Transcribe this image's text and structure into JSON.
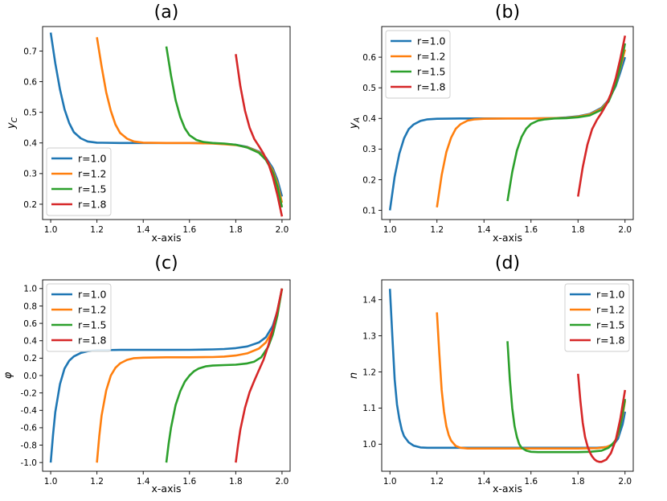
{
  "chart_data": [
    {
      "type": "line",
      "title": "(a)",
      "xlabel": "x-axis",
      "ylabel": "y_C",
      "ylabel_main": "y",
      "ylabel_sub": "C",
      "xlim": [
        0.965,
        2.035
      ],
      "ylim": [
        0.15,
        0.78
      ],
      "xticks": [
        1.0,
        1.2,
        1.4,
        1.6,
        1.8,
        2.0
      ],
      "xtick_labels": [
        "1.0",
        "1.2",
        "1.4",
        "1.6",
        "1.8",
        "2.0"
      ],
      "yticks": [
        0.2,
        0.3,
        0.4,
        0.5,
        0.6,
        0.7
      ],
      "ytick_labels": [
        "0.2",
        "0.3",
        "0.4",
        "0.5",
        "0.6",
        "0.7"
      ],
      "legend_position": "lower-left",
      "series": [
        {
          "name": "r=1.0",
          "color": "#1f77b4",
          "x": [
            1.0,
            1.02,
            1.04,
            1.06,
            1.08,
            1.1,
            1.13,
            1.16,
            1.2,
            1.3,
            1.4,
            1.5,
            1.6,
            1.7,
            1.75,
            1.8,
            1.85,
            1.9,
            1.93,
            1.96,
            1.98,
            2.0
          ],
          "y": [
            0.76,
            0.66,
            0.575,
            0.51,
            0.465,
            0.435,
            0.415,
            0.405,
            0.401,
            0.4,
            0.4,
            0.4,
            0.4,
            0.399,
            0.397,
            0.394,
            0.387,
            0.372,
            0.352,
            0.318,
            0.28,
            0.225
          ]
        },
        {
          "name": "r=1.2",
          "color": "#ff7f0e",
          "x": [
            1.2,
            1.22,
            1.24,
            1.26,
            1.28,
            1.3,
            1.33,
            1.36,
            1.4,
            1.5,
            1.6,
            1.7,
            1.75,
            1.8,
            1.85,
            1.9,
            1.93,
            1.96,
            1.98,
            2.0
          ],
          "y": [
            0.745,
            0.65,
            0.565,
            0.505,
            0.46,
            0.433,
            0.414,
            0.405,
            0.401,
            0.4,
            0.4,
            0.398,
            0.396,
            0.393,
            0.386,
            0.37,
            0.348,
            0.31,
            0.268,
            0.205
          ]
        },
        {
          "name": "r=1.5",
          "color": "#2ca02c",
          "x": [
            1.5,
            1.52,
            1.54,
            1.56,
            1.58,
            1.6,
            1.63,
            1.66,
            1.7,
            1.75,
            1.8,
            1.85,
            1.9,
            1.93,
            1.96,
            1.98,
            2.0
          ],
          "y": [
            0.715,
            0.62,
            0.54,
            0.485,
            0.448,
            0.425,
            0.41,
            0.403,
            0.4,
            0.398,
            0.394,
            0.385,
            0.368,
            0.345,
            0.305,
            0.258,
            0.19
          ]
        },
        {
          "name": "r=1.8",
          "color": "#d62728",
          "x": [
            1.8,
            1.82,
            1.84,
            1.86,
            1.88,
            1.9,
            1.92,
            1.94,
            1.96,
            1.98,
            2.0
          ],
          "y": [
            0.69,
            0.585,
            0.505,
            0.45,
            0.413,
            0.39,
            0.365,
            0.335,
            0.29,
            0.23,
            0.16
          ]
        }
      ]
    },
    {
      "type": "line",
      "title": "(b)",
      "xlabel": "x-axis",
      "ylabel": "y_A",
      "ylabel_main": "y",
      "ylabel_sub": "A",
      "xlim": [
        0.965,
        2.035
      ],
      "ylim": [
        0.07,
        0.7
      ],
      "xticks": [
        1.0,
        1.2,
        1.4,
        1.6,
        1.8,
        2.0
      ],
      "xtick_labels": [
        "1.0",
        "1.2",
        "1.4",
        "1.6",
        "1.8",
        "2.0"
      ],
      "yticks": [
        0.1,
        0.2,
        0.3,
        0.4,
        0.5,
        0.6
      ],
      "ytick_labels": [
        "0.1",
        "0.2",
        "0.3",
        "0.4",
        "0.5",
        "0.6"
      ],
      "legend_position": "upper-left",
      "series": [
        {
          "name": "r=1.0",
          "color": "#1f77b4",
          "x": [
            1.0,
            1.02,
            1.04,
            1.06,
            1.08,
            1.1,
            1.13,
            1.16,
            1.2,
            1.3,
            1.4,
            1.5,
            1.6,
            1.7,
            1.75,
            1.8,
            1.85,
            1.9,
            1.93,
            1.96,
            1.98,
            2.0
          ],
          "y": [
            0.1,
            0.21,
            0.285,
            0.335,
            0.365,
            0.38,
            0.392,
            0.397,
            0.399,
            0.4,
            0.4,
            0.4,
            0.4,
            0.401,
            0.403,
            0.407,
            0.415,
            0.435,
            0.46,
            0.505,
            0.55,
            0.6
          ]
        },
        {
          "name": "r=1.2",
          "color": "#ff7f0e",
          "x": [
            1.2,
            1.22,
            1.24,
            1.26,
            1.28,
            1.3,
            1.33,
            1.36,
            1.4,
            1.5,
            1.6,
            1.7,
            1.75,
            1.8,
            1.85,
            1.9,
            1.93,
            1.96,
            1.98,
            2.0
          ],
          "y": [
            0.11,
            0.215,
            0.29,
            0.337,
            0.366,
            0.381,
            0.393,
            0.397,
            0.399,
            0.4,
            0.4,
            0.401,
            0.402,
            0.406,
            0.413,
            0.432,
            0.458,
            0.51,
            0.565,
            0.625
          ]
        },
        {
          "name": "r=1.5",
          "color": "#2ca02c",
          "x": [
            1.5,
            1.52,
            1.54,
            1.56,
            1.58,
            1.6,
            1.63,
            1.66,
            1.7,
            1.75,
            1.8,
            1.85,
            1.9,
            1.93,
            1.96,
            1.98,
            2.0
          ],
          "y": [
            0.13,
            0.225,
            0.295,
            0.34,
            0.367,
            0.382,
            0.393,
            0.397,
            0.4,
            0.401,
            0.404,
            0.41,
            0.428,
            0.455,
            0.51,
            0.57,
            0.645
          ]
        },
        {
          "name": "r=1.8",
          "color": "#d62728",
          "x": [
            1.8,
            1.82,
            1.84,
            1.86,
            1.88,
            1.9,
            1.92,
            1.94,
            1.96,
            1.98,
            2.0
          ],
          "y": [
            0.145,
            0.24,
            0.315,
            0.365,
            0.395,
            0.418,
            0.445,
            0.48,
            0.53,
            0.595,
            0.67
          ]
        }
      ]
    },
    {
      "type": "line",
      "title": "(c)",
      "xlabel": "x-axis",
      "ylabel": "φ",
      "xlim": [
        0.965,
        2.035
      ],
      "ylim": [
        -1.1,
        1.1
      ],
      "xticks": [
        1.0,
        1.2,
        1.4,
        1.6,
        1.8,
        2.0
      ],
      "xtick_labels": [
        "1.0",
        "1.2",
        "1.4",
        "1.6",
        "1.8",
        "2.0"
      ],
      "yticks": [
        -1.0,
        -0.8,
        -0.6,
        -0.4,
        -0.2,
        0.0,
        0.2,
        0.4,
        0.6,
        0.8,
        1.0
      ],
      "ytick_labels": [
        "-1.0",
        "-0.8",
        "-0.6",
        "-0.4",
        "-0.2",
        "0.0",
        "0.2",
        "0.4",
        "0.6",
        "0.8",
        "1.0"
      ],
      "legend_position": "upper-left",
      "series": [
        {
          "name": "r=1.0",
          "color": "#1f77b4",
          "x": [
            1.0,
            1.01,
            1.02,
            1.04,
            1.06,
            1.08,
            1.1,
            1.13,
            1.16,
            1.2,
            1.3,
            1.4,
            1.5,
            1.6,
            1.7,
            1.75,
            1.8,
            1.85,
            1.9,
            1.93,
            1.96,
            1.98,
            2.0
          ],
          "y": [
            -1.0,
            -0.68,
            -0.42,
            -0.1,
            0.08,
            0.17,
            0.22,
            0.26,
            0.28,
            0.29,
            0.295,
            0.295,
            0.295,
            0.296,
            0.3,
            0.305,
            0.315,
            0.335,
            0.38,
            0.44,
            0.57,
            0.74,
            1.0
          ]
        },
        {
          "name": "r=1.2",
          "color": "#ff7f0e",
          "x": [
            1.2,
            1.21,
            1.22,
            1.24,
            1.26,
            1.28,
            1.3,
            1.33,
            1.36,
            1.4,
            1.5,
            1.6,
            1.7,
            1.75,
            1.8,
            1.85,
            1.9,
            1.93,
            1.96,
            1.98,
            2.0
          ],
          "y": [
            -1.0,
            -0.7,
            -0.46,
            -0.17,
            0.0,
            0.09,
            0.14,
            0.18,
            0.2,
            0.205,
            0.21,
            0.21,
            0.213,
            0.218,
            0.23,
            0.255,
            0.31,
            0.38,
            0.52,
            0.71,
            1.0
          ]
        },
        {
          "name": "r=1.5",
          "color": "#2ca02c",
          "x": [
            1.5,
            1.51,
            1.52,
            1.54,
            1.56,
            1.58,
            1.6,
            1.62,
            1.64,
            1.67,
            1.7,
            1.75,
            1.8,
            1.85,
            1.88,
            1.91,
            1.94,
            1.96,
            1.98,
            2.0
          ],
          "y": [
            -1.0,
            -0.78,
            -0.6,
            -0.34,
            -0.18,
            -0.07,
            0.0,
            0.05,
            0.08,
            0.105,
            0.115,
            0.12,
            0.125,
            0.14,
            0.16,
            0.21,
            0.33,
            0.47,
            0.69,
            1.0
          ]
        },
        {
          "name": "r=1.8",
          "color": "#d62728",
          "x": [
            1.8,
            1.81,
            1.82,
            1.84,
            1.86,
            1.88,
            1.9,
            1.92,
            1.94,
            1.96,
            1.98,
            2.0
          ],
          "y": [
            -1.0,
            -0.8,
            -0.62,
            -0.37,
            -0.19,
            -0.06,
            0.06,
            0.18,
            0.34,
            0.53,
            0.75,
            1.0
          ]
        }
      ]
    },
    {
      "type": "line",
      "title": "(d)",
      "xlabel": "x-axis",
      "ylabel": "n",
      "xlim": [
        0.965,
        2.035
      ],
      "ylim": [
        0.925,
        1.455
      ],
      "xticks": [
        1.0,
        1.2,
        1.4,
        1.6,
        1.8,
        2.0
      ],
      "xtick_labels": [
        "1.0",
        "1.2",
        "1.4",
        "1.6",
        "1.8",
        "2.0"
      ],
      "yticks": [
        1.0,
        1.1,
        1.2,
        1.3,
        1.4
      ],
      "ytick_labels": [
        "1.0",
        "1.1",
        "1.2",
        "1.3",
        "1.4"
      ],
      "legend_position": "upper-right",
      "series": [
        {
          "name": "r=1.0",
          "color": "#1f77b4",
          "x": [
            1.0,
            1.01,
            1.02,
            1.03,
            1.04,
            1.05,
            1.06,
            1.08,
            1.1,
            1.13,
            1.16,
            1.2,
            1.3,
            1.5,
            1.7,
            1.8,
            1.88,
            1.92,
            1.95,
            1.97,
            1.99,
            2.0
          ],
          "y": [
            1.43,
            1.3,
            1.18,
            1.11,
            1.07,
            1.04,
            1.022,
            1.005,
            0.996,
            0.991,
            0.99,
            0.99,
            0.99,
            0.99,
            0.99,
            0.99,
            0.99,
            0.992,
            0.998,
            1.015,
            1.055,
            1.09
          ]
        },
        {
          "name": "r=1.2",
          "color": "#ff7f0e",
          "x": [
            1.2,
            1.21,
            1.22,
            1.23,
            1.24,
            1.25,
            1.26,
            1.28,
            1.3,
            1.33,
            1.36,
            1.4,
            1.5,
            1.7,
            1.8,
            1.88,
            1.92,
            1.95,
            1.97,
            1.99,
            2.0
          ],
          "y": [
            1.365,
            1.25,
            1.15,
            1.09,
            1.05,
            1.025,
            1.01,
            0.995,
            0.99,
            0.988,
            0.988,
            0.988,
            0.988,
            0.988,
            0.988,
            0.989,
            0.992,
            1.0,
            1.025,
            1.08,
            1.12
          ]
        },
        {
          "name": "r=1.5",
          "color": "#2ca02c",
          "x": [
            1.5,
            1.51,
            1.52,
            1.53,
            1.54,
            1.55,
            1.56,
            1.58,
            1.6,
            1.63,
            1.66,
            1.7,
            1.75,
            1.8,
            1.85,
            1.9,
            1.93,
            1.96,
            1.98,
            2.0
          ],
          "y": [
            1.285,
            1.18,
            1.1,
            1.05,
            1.02,
            1.0,
            0.99,
            0.982,
            0.979,
            0.978,
            0.978,
            0.978,
            0.978,
            0.978,
            0.979,
            0.982,
            0.99,
            1.01,
            1.05,
            1.125
          ]
        },
        {
          "name": "r=1.8",
          "color": "#d62728",
          "x": [
            1.8,
            1.81,
            1.82,
            1.83,
            1.84,
            1.85,
            1.86,
            1.87,
            1.88,
            1.89,
            1.9,
            1.92,
            1.94,
            1.96,
            1.98,
            2.0
          ],
          "y": [
            1.195,
            1.12,
            1.06,
            1.02,
            0.995,
            0.978,
            0.966,
            0.958,
            0.953,
            0.951,
            0.951,
            0.957,
            0.975,
            1.01,
            1.07,
            1.15
          ]
        }
      ]
    }
  ]
}
